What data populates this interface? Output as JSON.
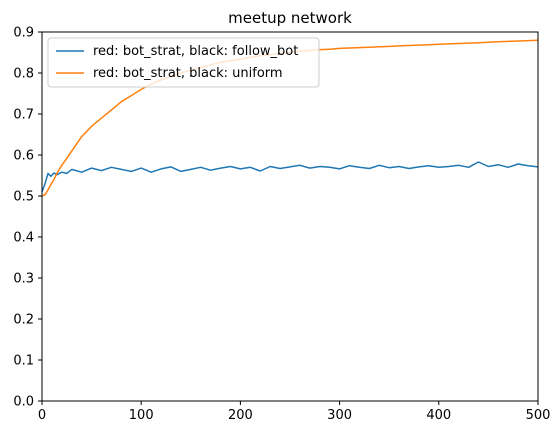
{
  "chart_data": {
    "type": "line",
    "title": "meetup network",
    "xlabel": "",
    "ylabel": "",
    "xlim": [
      0,
      500
    ],
    "ylim": [
      0.0,
      0.9
    ],
    "xticks": [
      0,
      100,
      200,
      300,
      400,
      500
    ],
    "xtick_labels": [
      "0",
      "100",
      "200",
      "300",
      "400",
      "500"
    ],
    "yticks": [
      0.0,
      0.1,
      0.2,
      0.3,
      0.4,
      0.5,
      0.6,
      0.7,
      0.8,
      0.9
    ],
    "ytick_labels": [
      "0.0",
      "0.1",
      "0.2",
      "0.3",
      "0.4",
      "0.5",
      "0.6",
      "0.7",
      "0.8",
      "0.9"
    ],
    "grid": false,
    "legend_position": "top-left",
    "series": [
      {
        "name": "red: bot_strat, black: follow_bot",
        "color": "#1f77b4",
        "x": [
          0,
          3,
          6,
          9,
          12,
          15,
          20,
          25,
          30,
          40,
          50,
          60,
          70,
          80,
          90,
          100,
          110,
          120,
          130,
          140,
          150,
          160,
          170,
          180,
          190,
          200,
          210,
          220,
          230,
          240,
          250,
          260,
          270,
          280,
          290,
          300,
          310,
          320,
          330,
          340,
          350,
          360,
          370,
          380,
          390,
          400,
          410,
          420,
          430,
          440,
          450,
          460,
          470,
          480,
          490,
          500
        ],
        "y": [
          0.51,
          0.53,
          0.555,
          0.548,
          0.556,
          0.552,
          0.558,
          0.555,
          0.565,
          0.558,
          0.568,
          0.562,
          0.57,
          0.565,
          0.56,
          0.568,
          0.558,
          0.566,
          0.571,
          0.56,
          0.565,
          0.57,
          0.563,
          0.568,
          0.572,
          0.566,
          0.57,
          0.561,
          0.572,
          0.567,
          0.571,
          0.575,
          0.568,
          0.572,
          0.57,
          0.566,
          0.574,
          0.57,
          0.567,
          0.575,
          0.569,
          0.572,
          0.567,
          0.571,
          0.574,
          0.57,
          0.572,
          0.575,
          0.57,
          0.583,
          0.572,
          0.576,
          0.57,
          0.578,
          0.574,
          0.571
        ]
      },
      {
        "name": "red: bot_strat, black: uniform",
        "color": "#ff7f0e",
        "x": [
          0,
          3,
          6,
          9,
          12,
          15,
          20,
          25,
          30,
          40,
          50,
          60,
          70,
          80,
          90,
          100,
          110,
          120,
          130,
          140,
          150,
          160,
          170,
          180,
          190,
          200,
          210,
          220,
          230,
          240,
          250,
          260,
          270,
          280,
          290,
          300,
          310,
          320,
          330,
          340,
          350,
          360,
          370,
          380,
          390,
          400,
          410,
          420,
          430,
          440,
          450,
          460,
          470,
          480,
          490,
          500
        ],
        "y": [
          0.5,
          0.503,
          0.515,
          0.528,
          0.54,
          0.555,
          0.575,
          0.592,
          0.61,
          0.645,
          0.67,
          0.69,
          0.71,
          0.73,
          0.745,
          0.76,
          0.773,
          0.783,
          0.792,
          0.8,
          0.807,
          0.813,
          0.82,
          0.826,
          0.83,
          0.834,
          0.838,
          0.842,
          0.845,
          0.848,
          0.85,
          0.853,
          0.855,
          0.857,
          0.858,
          0.86,
          0.861,
          0.862,
          0.863,
          0.864,
          0.865,
          0.866,
          0.867,
          0.868,
          0.869,
          0.87,
          0.871,
          0.872,
          0.873,
          0.874,
          0.875,
          0.876,
          0.877,
          0.878,
          0.879,
          0.88
        ]
      }
    ]
  }
}
